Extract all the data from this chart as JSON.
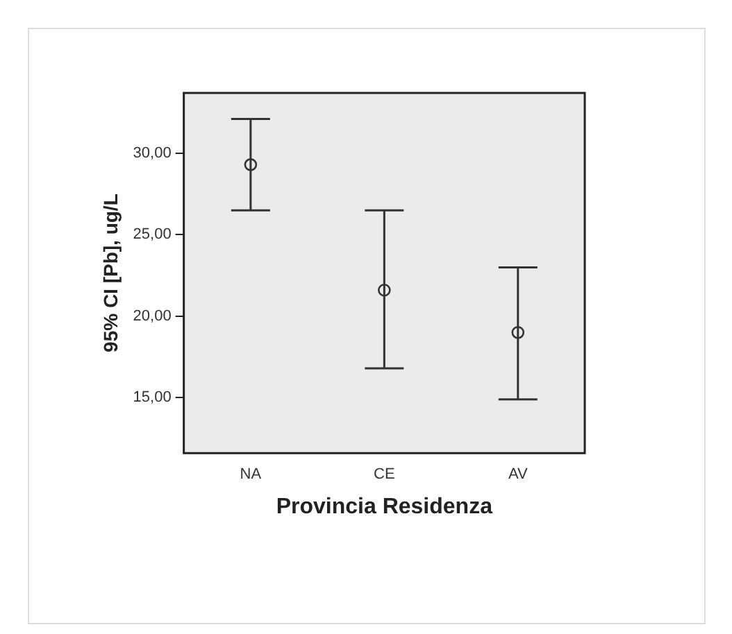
{
  "chart_data": {
    "type": "scatter",
    "xlabel": "Provincia Residenza",
    "ylabel": "95% CI [Pb], ug/L",
    "categories": [
      "NA",
      "CE",
      "AV"
    ],
    "values": [
      29.3,
      21.6,
      19.0
    ],
    "errors": [
      [
        26.5,
        32.1
      ],
      [
        16.8,
        26.5
      ],
      [
        14.9,
        23.0
      ]
    ],
    "color": "#333333",
    "marker": "circle",
    "ylim": [
      11.6,
      33.7
    ],
    "yticks": [
      {
        "value": 15,
        "label": "15,00"
      },
      {
        "value": 20,
        "label": "20,00"
      },
      {
        "value": 25,
        "label": "25,00"
      },
      {
        "value": 30,
        "label": "30,00"
      }
    ],
    "grid": false,
    "legend": false
  }
}
